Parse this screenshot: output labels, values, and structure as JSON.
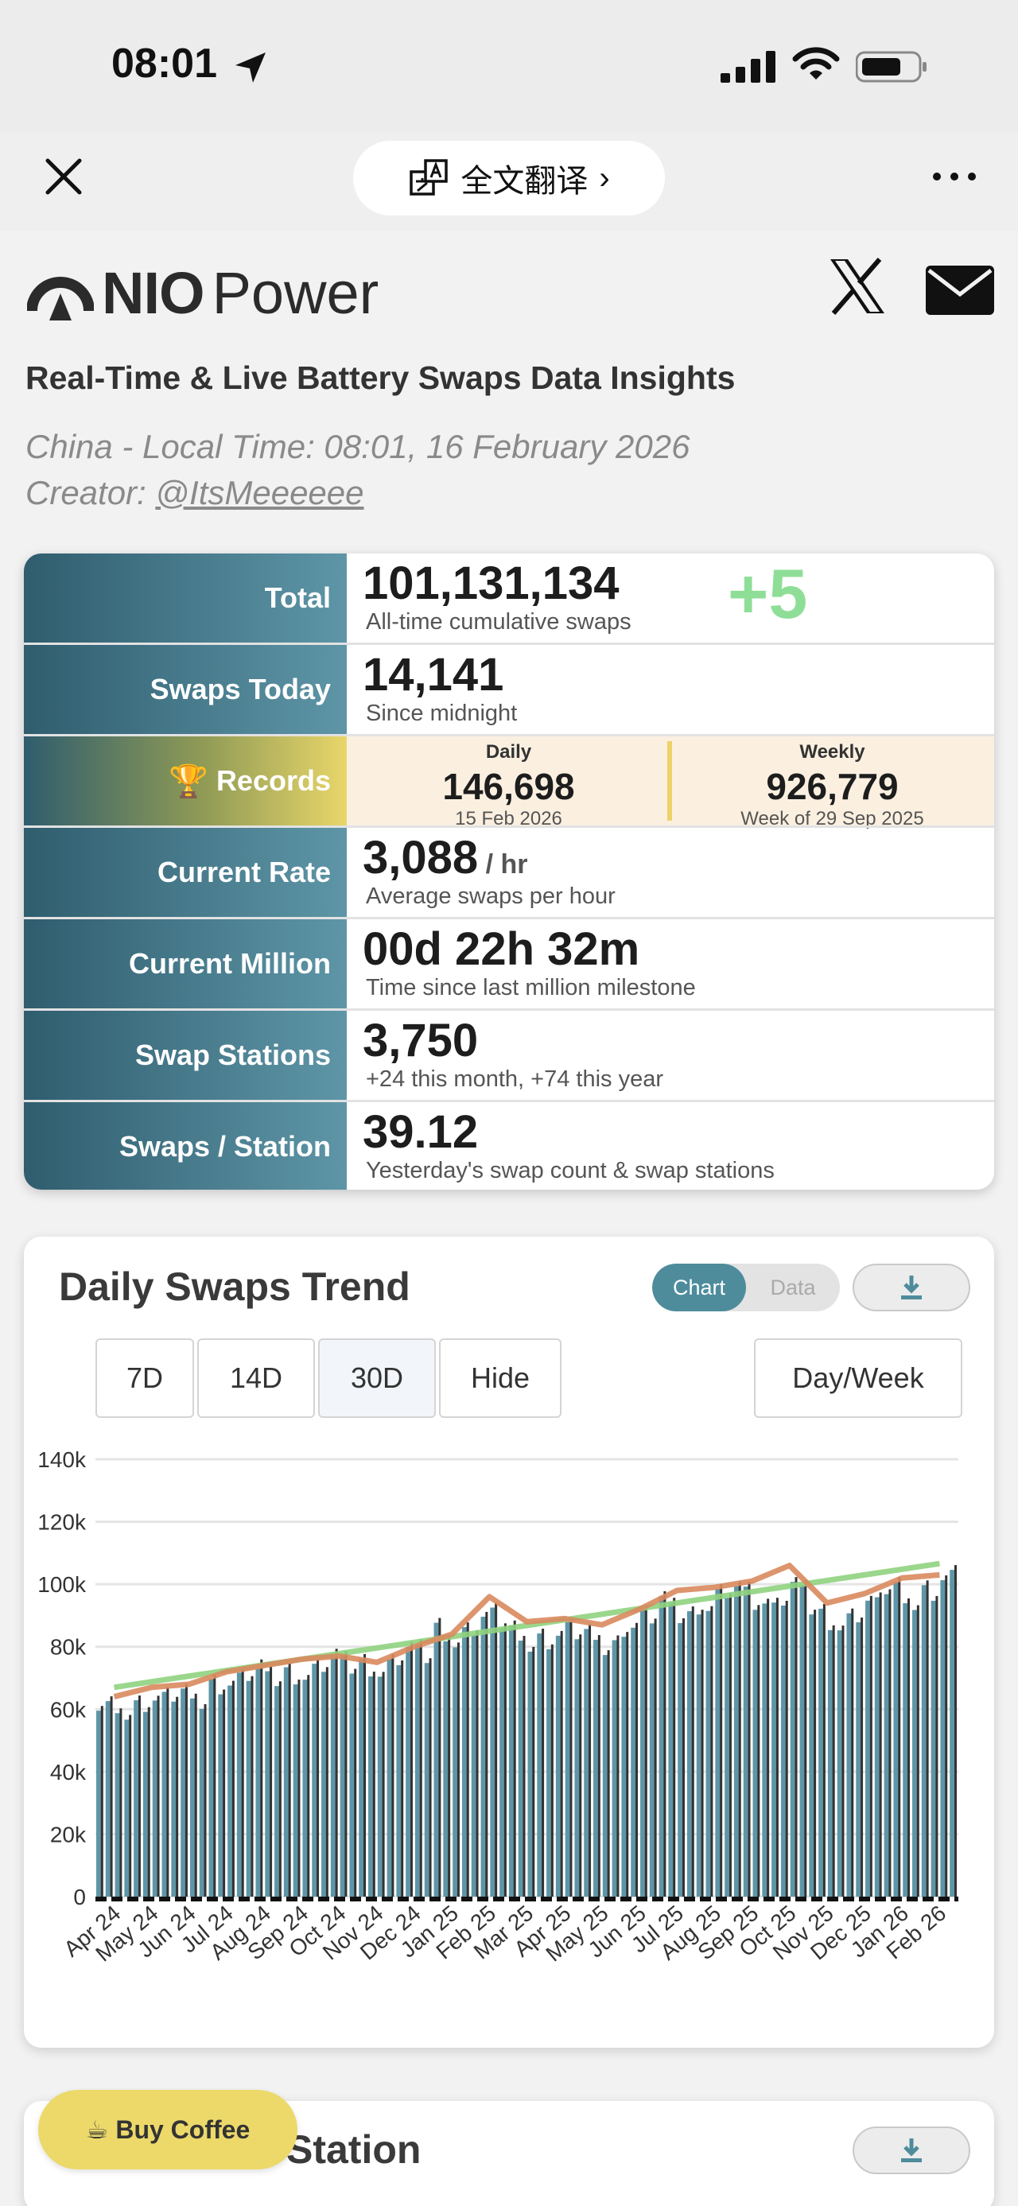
{
  "status_bar": {
    "time": "08:01"
  },
  "toolbar": {
    "translate_label": "全文翻译",
    "translate_chevron": "›"
  },
  "header": {
    "logo_primary": "NIO",
    "logo_secondary": "Power",
    "subtitle": "Real-Time & Live Battery Swaps Data Insights",
    "local_time": "China - Local Time: 08:01, 16 February 2026",
    "creator_prefix": "Creator: ",
    "creator_handle": "@ItsMeeeeee"
  },
  "stats": {
    "total": {
      "label": "Total",
      "value": "101,131,134",
      "note": "All-time cumulative swaps",
      "delta": "+5"
    },
    "today": {
      "label": "Swaps Today",
      "value": "14,141",
      "note": "Since midnight"
    },
    "records": {
      "label": "Records",
      "daily": {
        "heading": "Daily",
        "value": "146,698",
        "date": "15 Feb 2026"
      },
      "weekly": {
        "heading": "Weekly",
        "value": "926,779",
        "date": "Week of 29 Sep 2025"
      }
    },
    "rate": {
      "label": "Current Rate",
      "value": "3,088",
      "unit": " / hr",
      "note": "Average swaps per hour"
    },
    "million": {
      "label": "Current Million",
      "value": "00d 22h 32m",
      "note": "Time since last million milestone"
    },
    "stations": {
      "label": "Swap Stations",
      "value": "3,750",
      "note": "+24 this month, +74 this year"
    },
    "per_station": {
      "label": "Swaps / Station",
      "value": "39.12",
      "note": "Yesterday's swap count & swap stations"
    }
  },
  "trend": {
    "title": "Daily Swaps Trend",
    "toggle_chart": "Chart",
    "toggle_data": "Data",
    "ranges": [
      "7D",
      "14D",
      "30D",
      "Hide"
    ],
    "active_range": "30D",
    "dayweek": "Day/Week"
  },
  "chart_data": {
    "type": "bar",
    "title": "Daily Swaps Trend",
    "ylim": [
      0,
      140000
    ],
    "y_ticks": [
      "0",
      "20k",
      "40k",
      "60k",
      "80k",
      "100k",
      "120k",
      "140k"
    ],
    "categories": [
      "Apr 24",
      "May 24",
      "Jun 24",
      "Jul 24",
      "Aug 24",
      "Sep 24",
      "Oct 24",
      "Nov 24",
      "Dec 24",
      "Jan 25",
      "Feb 25",
      "Mar 25",
      "Apr 25",
      "May 25",
      "Jun 25",
      "Jul 25",
      "Aug 25",
      "Sep 25",
      "Oct 25",
      "Nov 25",
      "Dec 25",
      "Jan 26",
      "Feb 26"
    ],
    "series": [
      {
        "type": "bar",
        "values": [
          62000,
          65000,
          66000,
          71000,
          74000,
          74000,
          78000,
          76000,
          81000,
          87000,
          92000,
          86000,
          87000,
          85000,
          91000,
          96000,
          98000,
          100000,
          101000,
          92000,
          96000,
          100000,
          104000
        ]
      },
      {
        "type": "line",
        "values": [
          64000,
          67000,
          68000,
          72000,
          74000,
          76000,
          77000,
          75000,
          80000,
          84000,
          96000,
          88000,
          89000,
          87000,
          92000,
          98000,
          99000,
          101000,
          106000,
          94000,
          97000,
          102000,
          103000
        ]
      },
      {
        "type": "line",
        "values": [
          67000,
          68800,
          70600,
          72400,
          74200,
          76000,
          77800,
          79600,
          81400,
          83200,
          85000,
          86800,
          88600,
          90400,
          92200,
          94000,
          95800,
          97600,
          99400,
          101200,
          103000,
          104800,
          106600
        ]
      }
    ],
    "colors": {
      "bars": "#5e96a7",
      "spikes": "#333333",
      "moving_avg": "#d98a5e",
      "trend": "#8fd37f"
    }
  },
  "station_card": {
    "title": "Station"
  },
  "coffee": {
    "label": "☕ Buy Coffee"
  }
}
